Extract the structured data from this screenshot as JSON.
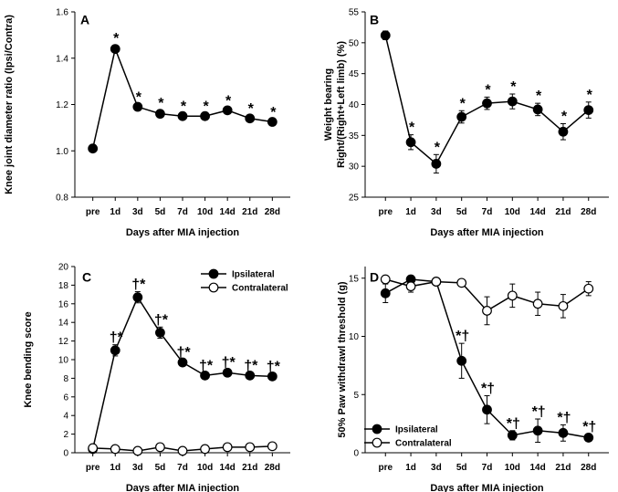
{
  "chart_data": [
    {
      "panel": "A",
      "type": "line",
      "xlabel": "Days after MIA injection",
      "ylabel": "Knee joint diameter ratio (Ipsi/Contra)",
      "categories": [
        "pre",
        "1d",
        "3d",
        "5d",
        "7d",
        "10d",
        "14d",
        "21d",
        "28d"
      ],
      "ylim": [
        0.8,
        1.6
      ],
      "yticks": [
        "0.8",
        "1.0",
        "1.2",
        "1.4",
        "1.6"
      ],
      "ytick_values": [
        0.8,
        1.0,
        1.2,
        1.4,
        1.6
      ],
      "series": [
        {
          "name": "Ratio",
          "marker": "filled",
          "values": [
            1.01,
            1.44,
            1.19,
            1.16,
            1.15,
            1.15,
            1.175,
            1.14,
            1.125
          ],
          "errors": [
            0.015,
            0.015,
            0.01,
            0.015,
            0.01,
            0.01,
            0.01,
            0.01,
            0.01
          ],
          "marks": [
            "",
            "*",
            "*",
            "*",
            "*",
            "*",
            "*",
            "*",
            "*"
          ]
        }
      ]
    },
    {
      "panel": "B",
      "type": "line",
      "xlabel": "Days after MIA injection",
      "ylabel": "Weight bearing Right/(Right+Left limb) (%)",
      "ylabel_lines": [
        "Weight bearing",
        "Right/(Right+Left limb) (%)"
      ],
      "categories": [
        "pre",
        "1d",
        "3d",
        "5d",
        "7d",
        "10d",
        "14d",
        "21d",
        "28d"
      ],
      "ylim": [
        25,
        55
      ],
      "yticks": [
        "25",
        "30",
        "35",
        "40",
        "45",
        "50",
        "55"
      ],
      "ytick_values": [
        25,
        30,
        35,
        40,
        45,
        50,
        55
      ],
      "series": [
        {
          "name": "Weight bearing",
          "marker": "filled",
          "values": [
            51.2,
            33.9,
            30.4,
            38.0,
            40.2,
            40.5,
            39.2,
            35.6,
            39.1
          ],
          "errors": [
            0.7,
            1.2,
            1.5,
            1.0,
            1.0,
            1.2,
            1.0,
            1.3,
            1.3
          ],
          "marks": [
            "",
            "*",
            "*",
            "*",
            "*",
            "*",
            "*",
            "*",
            "*"
          ]
        }
      ]
    },
    {
      "panel": "C",
      "type": "line",
      "xlabel": "Days after MIA injection",
      "ylabel": "Knee bending score",
      "categories": [
        "pre",
        "1d",
        "3d",
        "5d",
        "7d",
        "10d",
        "14d",
        "21d",
        "28d"
      ],
      "ylim": [
        0,
        20
      ],
      "yticks": [
        "0",
        "2",
        "4",
        "6",
        "8",
        "10",
        "12",
        "14",
        "16",
        "18",
        "20"
      ],
      "ytick_values": [
        0,
        2,
        4,
        6,
        8,
        10,
        12,
        14,
        16,
        18,
        20
      ],
      "legend": "top-right",
      "series": [
        {
          "name": "Ipsilateral",
          "marker": "filled",
          "values": [
            0.4,
            11.0,
            16.7,
            12.9,
            9.7,
            8.3,
            8.6,
            8.3,
            8.2
          ],
          "errors": [
            0.1,
            0.6,
            0.6,
            0.6,
            0.3,
            0.3,
            0.3,
            0.3,
            0.3
          ],
          "marks": [
            "",
            "†*",
            "†*",
            "†*",
            "†*",
            "†*",
            "†*",
            "†*",
            "†*"
          ]
        },
        {
          "name": "Contralateral",
          "marker": "open",
          "values": [
            0.5,
            0.4,
            0.2,
            0.6,
            0.2,
            0.4,
            0.6,
            0.6,
            0.7
          ],
          "errors": [
            0.1,
            0.1,
            0.1,
            0.1,
            0.1,
            0.1,
            0.1,
            0.1,
            0.1
          ],
          "marks": [
            "",
            "",
            "",
            "",
            "",
            "",
            "",
            "",
            ""
          ]
        }
      ]
    },
    {
      "panel": "D",
      "type": "line",
      "xlabel": "Days after MIA injection",
      "ylabel": "50% Paw withdrawl threshold (g)",
      "categories": [
        "pre",
        "1d",
        "3d",
        "5d",
        "7d",
        "10d",
        "14d",
        "21d",
        "28d"
      ],
      "ylim": [
        0,
        16
      ],
      "yticks": [
        "0",
        "5",
        "10",
        "15"
      ],
      "ytick_values": [
        0,
        5,
        10,
        15
      ],
      "legend": "bottom-left",
      "series": [
        {
          "name": "Ipsilateral",
          "marker": "filled",
          "values": [
            13.7,
            14.9,
            14.7,
            7.9,
            3.7,
            1.5,
            1.9,
            1.7,
            1.3
          ],
          "errors": [
            0.8,
            0.3,
            0.3,
            1.5,
            1.2,
            0.4,
            1.0,
            0.7,
            0.3
          ],
          "marks": [
            "",
            "",
            "",
            "*†",
            "*†",
            "*†",
            "*†",
            "*†",
            "*†"
          ]
        },
        {
          "name": "Contralateral",
          "marker": "open",
          "values": [
            14.9,
            14.3,
            14.7,
            14.6,
            12.2,
            13.5,
            12.8,
            12.6,
            14.1
          ],
          "errors": [
            0.3,
            0.5,
            0.3,
            0.3,
            1.2,
            1.0,
            1.0,
            1.0,
            0.6
          ],
          "marks": [
            "",
            "",
            "",
            "",
            "",
            "",
            "",
            "",
            ""
          ]
        }
      ]
    }
  ]
}
